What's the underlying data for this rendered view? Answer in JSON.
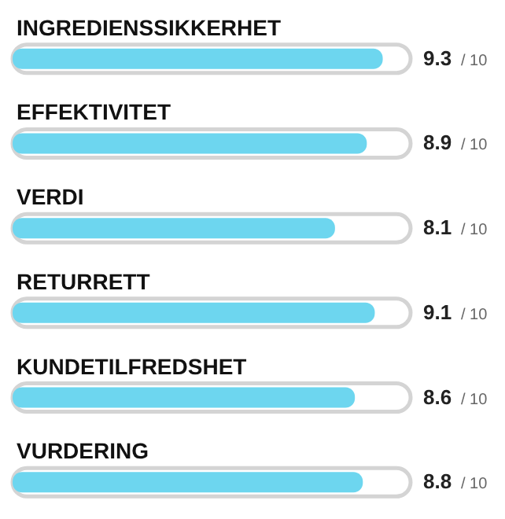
{
  "chart_data": {
    "type": "bar",
    "orientation": "horizontal",
    "categories": [
      "INGREDIENSSIKKERHET",
      "EFFEKTIVITET",
      "VERDI",
      "RETURRETT",
      "KUNDETILFREDSHET",
      "VURDERING"
    ],
    "values": [
      9.3,
      8.9,
      8.1,
      9.1,
      8.6,
      8.8
    ],
    "data_labels": true,
    "annotations": [
      "/ 10"
    ],
    "color": "#6dd6ef",
    "xlim": [
      0,
      10
    ],
    "tick_labels": "y",
    "grid": false
  }
}
